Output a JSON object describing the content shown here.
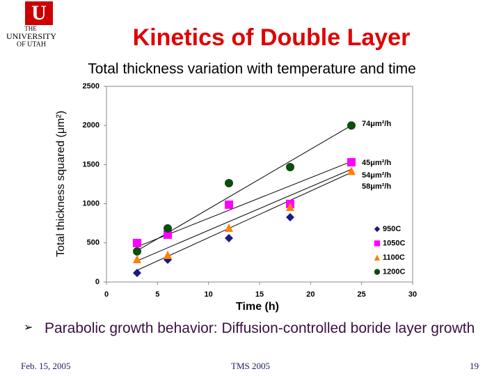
{
  "logo": {
    "top": "THE",
    "name": "UNIVERSITY",
    "bottom": "OF UTAH"
  },
  "slide_title": "Kinetics of Double Layer",
  "bullet": "Parabolic growth behavior: Diffusion-controlled boride layer growth",
  "footer": {
    "date": "Feb. 15, 2005",
    "event": "TMS 2005",
    "page": "19"
  },
  "chart_data": {
    "type": "scatter",
    "title": "Total thickness variation with temperature and time",
    "x_label": "Time (h)",
    "y_label": "Total thickness squared (μm²)",
    "xlim": [
      0,
      30
    ],
    "xticks": [
      0,
      5,
      10,
      15,
      20,
      25,
      30
    ],
    "ylim": [
      0,
      2500
    ],
    "yticks": [
      0,
      500,
      1000,
      1500,
      2000,
      2500
    ],
    "fit_x": [
      3,
      24
    ],
    "series": [
      {
        "name": "950C",
        "color": "#1a1a80",
        "marker": "diamond",
        "x": [
          3,
          6,
          12,
          18
        ],
        "values": [
          116,
          285,
          560,
          827
        ],
        "fit": [
          150,
          1400
        ]
      },
      {
        "name": "1050C",
        "color": "#ff00ff",
        "marker": "square",
        "x": [
          3,
          6,
          12,
          18,
          24
        ],
        "values": [
          498,
          605,
          988,
          997,
          1530
        ],
        "fit": [
          450,
          1540
        ]
      },
      {
        "name": "1100C",
        "color": "#ff8000",
        "marker": "triangle",
        "x": [
          3,
          6,
          12,
          18,
          24
        ],
        "values": [
          294,
          347,
          694,
          961,
          1420
        ],
        "fit": [
          270,
          1440
        ]
      },
      {
        "name": "1200C",
        "color": "#0b4d0b",
        "marker": "circle",
        "x": [
          3,
          6,
          12,
          18,
          24
        ],
        "values": [
          391,
          685,
          1263,
          1468,
          2000
        ],
        "fit": [
          400,
          2000
        ]
      }
    ],
    "annotations": [
      "74μm²/h",
      "45μm²/h",
      "54μm²/h",
      "58μm²/h"
    ]
  }
}
